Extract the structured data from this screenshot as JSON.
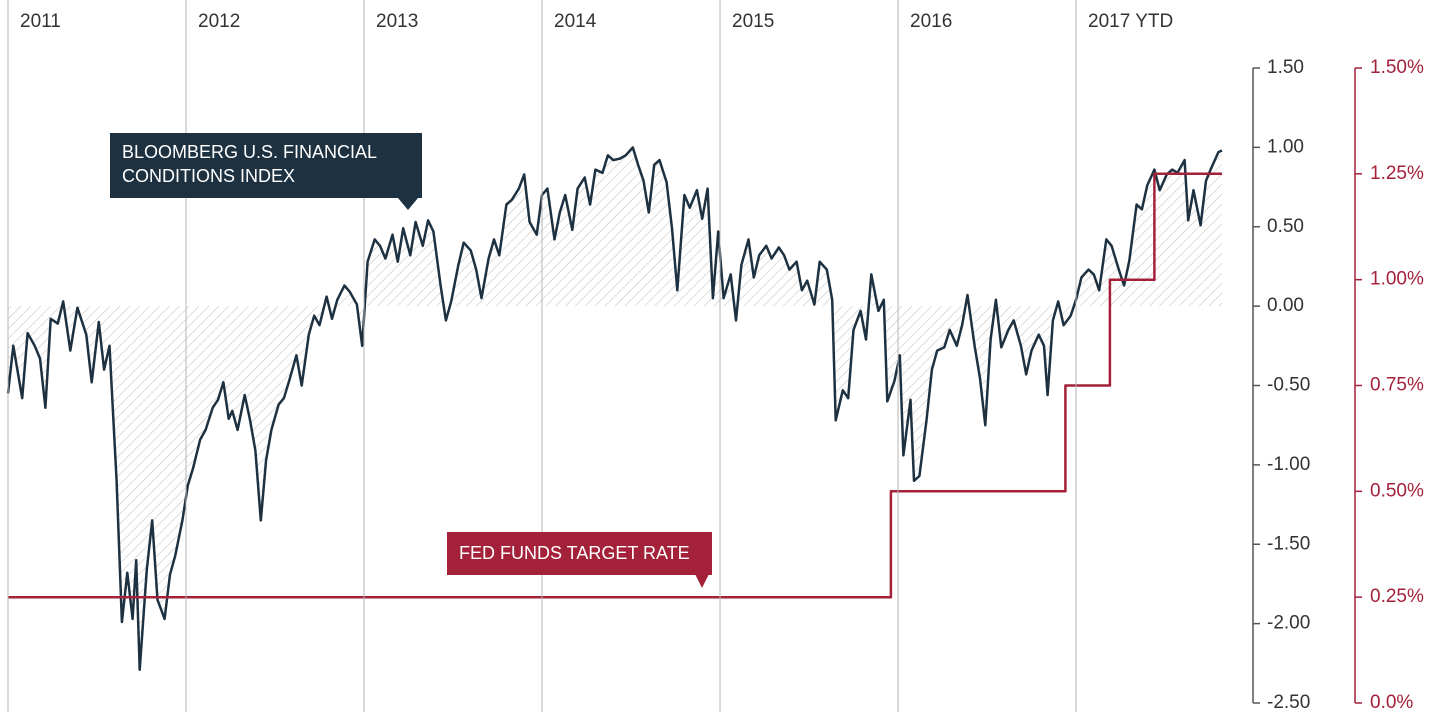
{
  "chart_data": {
    "type": "line",
    "xlim": [
      2011,
      2017.82
    ],
    "xticks": [
      2011,
      2012,
      2013,
      2014,
      2015,
      2016,
      {
        "value": 2017,
        "label": "2017 YTD"
      }
    ],
    "ylim": [
      -2.5,
      1.5
    ],
    "yticks": [
      {
        "value": 1.5,
        "label": "1.50"
      },
      {
        "value": 1,
        "label": "1.00"
      },
      {
        "value": 0.5,
        "label": "0.50"
      },
      {
        "value": 0,
        "label": "0.00"
      },
      {
        "value": -0.5,
        "label": "-0.50"
      },
      {
        "value": -1,
        "label": "-1.00"
      },
      {
        "value": -1.5,
        "label": "-1.50"
      },
      {
        "value": -2,
        "label": "-2.00"
      },
      {
        "value": -2.5,
        "label": "-2.50"
      }
    ],
    "y2lim": [
      0,
      1.5
    ],
    "y2ticks": [
      {
        "value": 1.5,
        "label": "1.50%"
      },
      {
        "value": 1.25,
        "label": "1.25%"
      },
      {
        "value": 1,
        "label": "1.00%"
      },
      {
        "value": 0.75,
        "label": "0.75%"
      },
      {
        "value": 0.5,
        "label": "0.50%"
      },
      {
        "value": 0.25,
        "label": "0.25%"
      },
      {
        "value": 0,
        "label": "0.0%"
      }
    ],
    "grid": true,
    "series": [
      {
        "name": "BLOOMBERG U.S. FINANCIAL CONDITIONS INDEX",
        "color": "#1d3141",
        "axis": "y",
        "x": [
          2011.0,
          2011.03,
          2011.08,
          2011.11,
          2011.15,
          2011.18,
          2011.21,
          2011.24,
          2011.28,
          2011.31,
          2011.35,
          2011.39,
          2011.44,
          2011.47,
          2011.51,
          2011.54,
          2011.57,
          2011.61,
          2011.64,
          2011.67,
          2011.7,
          2011.72,
          2011.74,
          2011.78,
          2011.81,
          2011.84,
          2011.88,
          2011.91,
          2011.94,
          2011.98,
          2012.01,
          2012.04,
          2012.08,
          2012.11,
          2012.15,
          2012.18,
          2012.21,
          2012.24,
          2012.26,
          2012.29,
          2012.33,
          2012.36,
          2012.39,
          2012.42,
          2012.45,
          2012.48,
          2012.52,
          2012.55,
          2012.58,
          2012.62,
          2012.65,
          2012.69,
          2012.72,
          2012.75,
          2012.79,
          2012.82,
          2012.85,
          2012.89,
          2012.92,
          2012.96,
          2012.99,
          2013.02,
          2013.06,
          2013.09,
          2013.12,
          2013.16,
          2013.19,
          2013.22,
          2013.26,
          2013.29,
          2013.33,
          2013.36,
          2013.39,
          2013.43,
          2013.46,
          2013.49,
          2013.53,
          2013.56,
          2013.6,
          2013.63,
          2013.66,
          2013.7,
          2013.73,
          2013.76,
          2013.8,
          2013.83,
          2013.87,
          2013.9,
          2013.93,
          2013.97,
          2014.0,
          2014.03,
          2014.07,
          2014.1,
          2014.13,
          2014.17,
          2014.2,
          2014.24,
          2014.27,
          2014.3,
          2014.34,
          2014.37,
          2014.4,
          2014.44,
          2014.47,
          2014.51,
          2014.54,
          2014.57,
          2014.6,
          2014.63,
          2014.66,
          2014.7,
          2014.73,
          2014.76,
          2014.8,
          2014.83,
          2014.87,
          2014.9,
          2014.93,
          2014.96,
          2014.99,
          2015.02,
          2015.06,
          2015.09,
          2015.12,
          2015.16,
          2015.19,
          2015.22,
          2015.26,
          2015.29,
          2015.33,
          2015.36,
          2015.39,
          2015.43,
          2015.46,
          2015.49,
          2015.53,
          2015.56,
          2015.6,
          2015.63,
          2015.65,
          2015.69,
          2015.72,
          2015.75,
          2015.79,
          2015.82,
          2015.85,
          2015.89,
          2015.92,
          2015.94,
          2015.98,
          2016.01,
          2016.03,
          2016.07,
          2016.09,
          2016.12,
          2016.16,
          2016.19,
          2016.22,
          2016.26,
          2016.29,
          2016.33,
          2016.36,
          2016.39,
          2016.43,
          2016.46,
          2016.49,
          2016.52,
          2016.55,
          2016.58,
          2016.62,
          2016.65,
          2016.69,
          2016.72,
          2016.75,
          2016.79,
          2016.82,
          2016.84,
          2016.87,
          2016.9,
          2016.93,
          2016.97,
          2017.0,
          2017.03,
          2017.07,
          2017.1,
          2017.13,
          2017.17,
          2017.2,
          2017.24,
          2017.27,
          2017.3,
          2017.34,
          2017.37,
          2017.4,
          2017.44,
          2017.47,
          2017.51,
          2017.54,
          2017.57,
          2017.61,
          2017.63,
          2017.66,
          2017.7,
          2017.73,
          2017.76,
          2017.8,
          2017.82
        ],
        "values": [
          -0.55,
          -0.25,
          -0.58,
          -0.17,
          -0.25,
          -0.33,
          -0.64,
          -0.08,
          -0.11,
          0.03,
          -0.28,
          -0.01,
          -0.18,
          -0.48,
          -0.1,
          -0.4,
          -0.25,
          -1.1,
          -1.99,
          -1.68,
          -1.97,
          -1.6,
          -2.29,
          -1.66,
          -1.35,
          -1.85,
          -1.97,
          -1.69,
          -1.57,
          -1.35,
          -1.13,
          -1.02,
          -0.84,
          -0.78,
          -0.64,
          -0.59,
          -0.48,
          -0.71,
          -0.66,
          -0.78,
          -0.56,
          -0.72,
          -0.91,
          -1.35,
          -0.97,
          -0.78,
          -0.62,
          -0.58,
          -0.47,
          -0.31,
          -0.5,
          -0.18,
          -0.06,
          -0.12,
          0.06,
          -0.08,
          0.04,
          0.13,
          0.09,
          0.01,
          -0.25,
          0.28,
          0.42,
          0.38,
          0.3,
          0.45,
          0.28,
          0.49,
          0.32,
          0.53,
          0.38,
          0.54,
          0.47,
          0.13,
          -0.09,
          0.03,
          0.26,
          0.4,
          0.35,
          0.23,
          0.05,
          0.3,
          0.42,
          0.32,
          0.64,
          0.67,
          0.74,
          0.83,
          0.53,
          0.45,
          0.7,
          0.74,
          0.42,
          0.59,
          0.7,
          0.48,
          0.74,
          0.81,
          0.64,
          0.86,
          0.84,
          0.95,
          0.92,
          0.93,
          0.95,
          1.0,
          0.89,
          0.79,
          0.59,
          0.89,
          0.92,
          0.78,
          0.49,
          0.1,
          0.7,
          0.62,
          0.73,
          0.55,
          0.74,
          0.05,
          0.47,
          0.05,
          0.2,
          -0.09,
          0.26,
          0.42,
          0.18,
          0.32,
          0.38,
          0.3,
          0.37,
          0.32,
          0.23,
          0.28,
          0.1,
          0.16,
          0.01,
          0.28,
          0.23,
          0.04,
          -0.72,
          -0.53,
          -0.58,
          -0.15,
          -0.03,
          -0.21,
          0.2,
          -0.03,
          0.04,
          -0.6,
          -0.47,
          -0.31,
          -0.94,
          -0.59,
          -1.1,
          -1.07,
          -0.72,
          -0.4,
          -0.28,
          -0.26,
          -0.15,
          -0.25,
          -0.12,
          0.07,
          -0.25,
          -0.45,
          -0.75,
          -0.21,
          0.04,
          -0.26,
          -0.15,
          -0.09,
          -0.25,
          -0.43,
          -0.28,
          -0.18,
          -0.25,
          -0.56,
          -0.09,
          0.03,
          -0.12,
          -0.06,
          0.04,
          0.18,
          0.23,
          0.2,
          0.1,
          0.42,
          0.38,
          0.23,
          0.13,
          0.29,
          0.64,
          0.61,
          0.76,
          0.86,
          0.73,
          0.83,
          0.86,
          0.84,
          0.92,
          0.54,
          0.73,
          0.51,
          0.79,
          0.87,
          0.97,
          0.98
        ]
      },
      {
        "name": "FED FUNDS TARGET RATE",
        "color": "#a4213a",
        "axis": "y2",
        "x": [
          2011,
          2015.96,
          2015.96,
          2016.94,
          2016.94,
          2017.19,
          2017.19,
          2017.44,
          2017.44,
          2017.82
        ],
        "values": [
          0.25,
          0.25,
          0.5,
          0.5,
          0.75,
          0.75,
          1,
          1,
          1.25,
          1.25
        ]
      }
    ]
  }
}
